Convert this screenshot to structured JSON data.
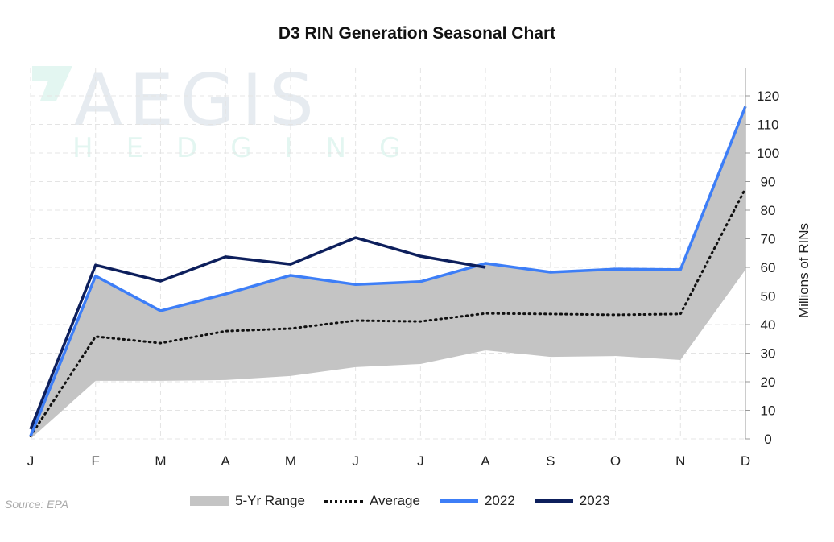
{
  "chart_data": {
    "type": "line",
    "title": "D3 RIN Generation Seasonal Chart",
    "ylabel": "Millions of RINs",
    "xlabel": "",
    "categories": [
      "J",
      "F",
      "M",
      "A",
      "M",
      "J",
      "J",
      "A",
      "S",
      "O",
      "N",
      "D"
    ],
    "ylim": [
      0,
      120
    ],
    "yticks": [
      0,
      10,
      20,
      30,
      40,
      50,
      60,
      70,
      80,
      90,
      100,
      110,
      120
    ],
    "y_axis_position": "right",
    "grid": true,
    "legend_placement": "bottom",
    "range": {
      "name": "5-Yr Range",
      "color": "#c4c4c4",
      "min": [
        0,
        20.3,
        20.3,
        20.6,
        22,
        25.1,
        26.2,
        31,
        28.7,
        29,
        27.6,
        59.2
      ],
      "max": [
        1,
        57,
        44.8,
        50.7,
        57.2,
        54,
        55,
        61.4,
        58.3,
        59.4,
        59.2,
        116.3
      ]
    },
    "series": [
      {
        "name": "Average",
        "color": "#111111",
        "style": "dotted",
        "values": [
          1,
          35.8,
          33.5,
          37.7,
          38.6,
          41.4,
          41.1,
          43.9,
          43.7,
          43.4,
          43.7,
          87.6
        ]
      },
      {
        "name": "2022",
        "color": "#3d7ef7",
        "style": "solid",
        "values": [
          1,
          57,
          44.8,
          50.7,
          57.2,
          54,
          55,
          61.4,
          58.3,
          59.4,
          59.2,
          116.3
        ]
      },
      {
        "name": "2023",
        "color": "#0d1f5c",
        "style": "solid",
        "values": [
          3.4,
          60.8,
          55.2,
          63.7,
          61.1,
          70.4,
          63.9,
          60,
          null,
          null,
          null,
          null
        ]
      }
    ]
  },
  "watermark": {
    "line1": "AEGIS",
    "line2": "HEDGING"
  },
  "source": "Source: EPA"
}
